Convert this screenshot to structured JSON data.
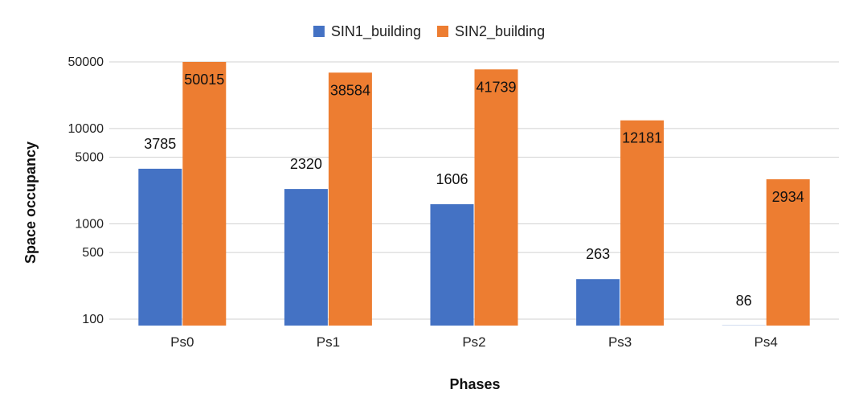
{
  "chart_data": {
    "type": "bar",
    "title": "",
    "xlabel": "Phases",
    "ylabel": "Space occupancy",
    "y_scale": "log",
    "ylim": [
      80,
      55000
    ],
    "yticks": [
      100,
      500,
      1000,
      5000,
      10000,
      50000
    ],
    "grid": true,
    "legend_position": "top",
    "categories": [
      "Ps0",
      "Ps1",
      "Ps2",
      "Ps3",
      "Ps4"
    ],
    "series": [
      {
        "name": "SIN1_building",
        "color": "#4472C4",
        "values": [
          3785,
          2320,
          1606,
          263,
          86
        ]
      },
      {
        "name": "SIN2_building",
        "color": "#ED7D31",
        "values": [
          50015,
          38584,
          41739,
          12181,
          2934
        ]
      }
    ]
  }
}
